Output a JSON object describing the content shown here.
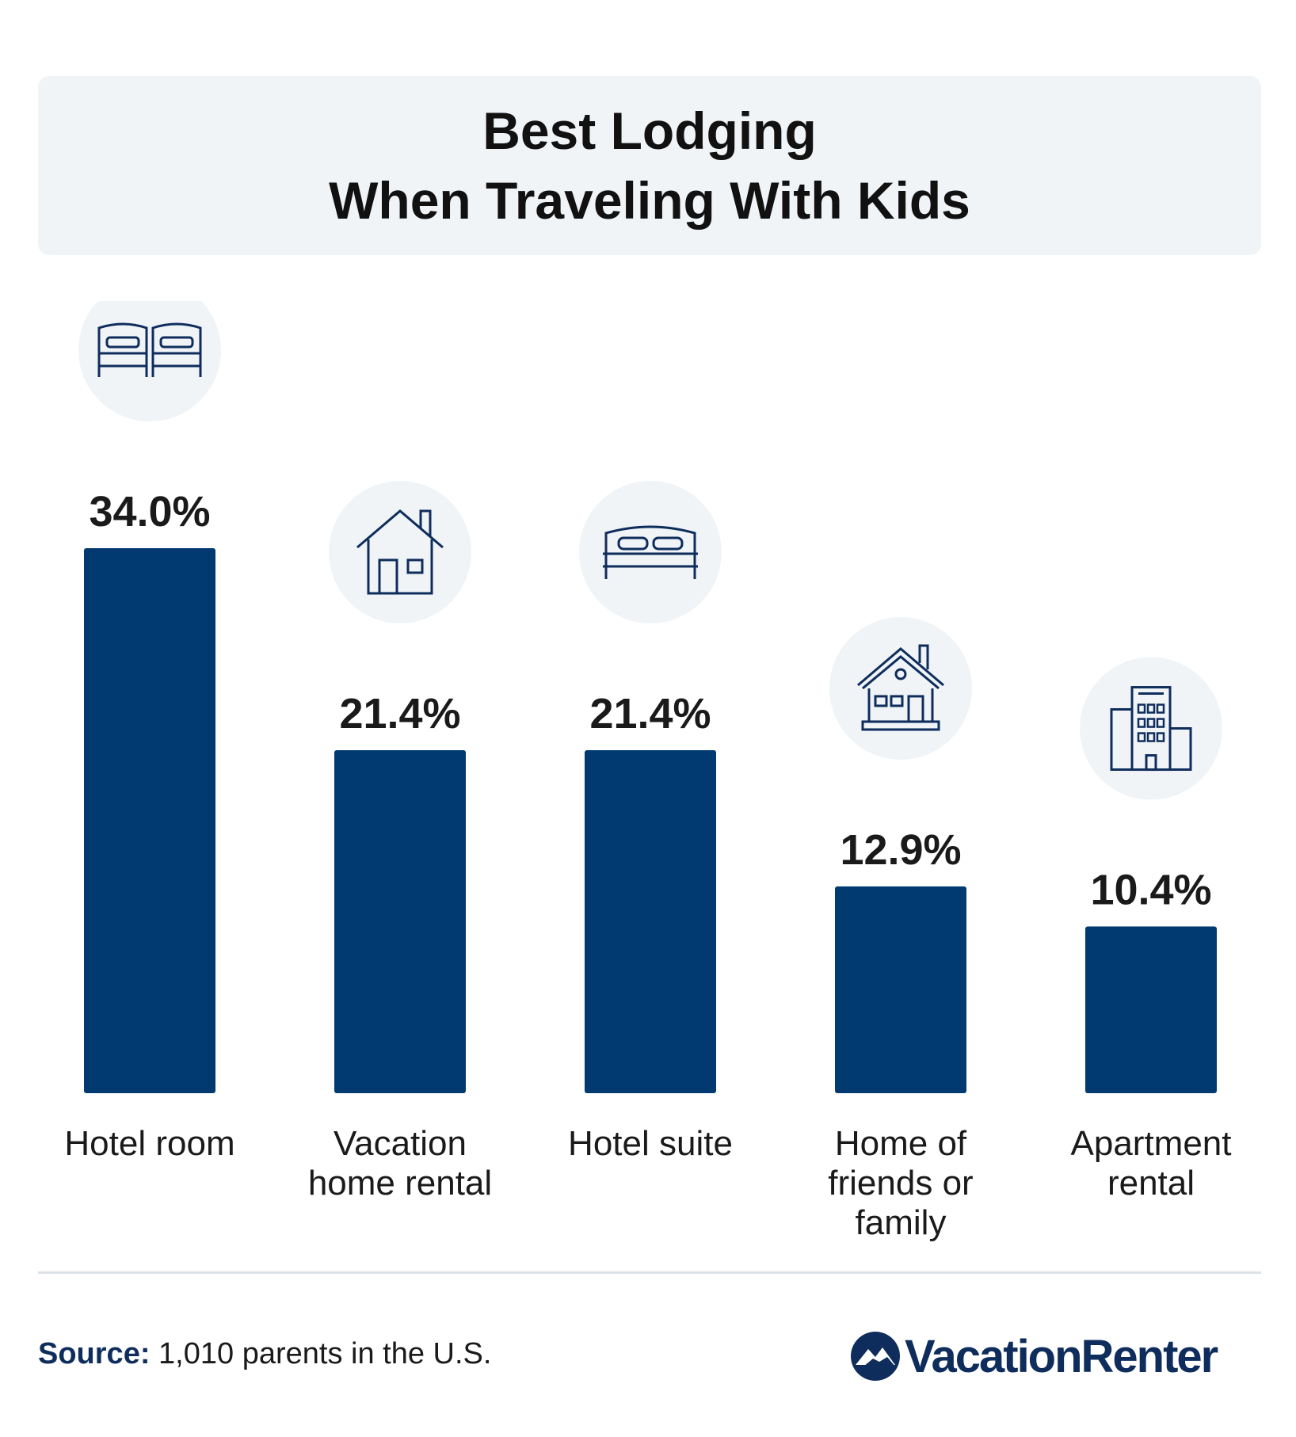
{
  "header": {
    "title_line1": "Best Lodging",
    "title_line2": "When Traveling With Kids"
  },
  "chart_data": {
    "type": "bar",
    "categories": [
      [
        "Hotel room"
      ],
      [
        "Vacation",
        "home rental"
      ],
      [
        "Hotel suite"
      ],
      [
        "Home of",
        "friends or",
        "family"
      ],
      [
        "Apartment",
        "rental"
      ]
    ],
    "values": [
      34.0,
      21.4,
      21.4,
      12.9,
      10.4
    ],
    "value_labels": [
      "34.0%",
      "21.4%",
      "21.4%",
      "12.9%",
      "10.4%"
    ],
    "icons": [
      "twin-beds-icon",
      "house-icon",
      "double-bed-icon",
      "family-home-icon",
      "apartment-building-icon"
    ],
    "bar_color": "#003a70",
    "icon_circle_color": "#f0f4f7",
    "icon_stroke_color": "#0f2d5c",
    "ylim": [
      0,
      34.0
    ],
    "grid": false
  },
  "footer": {
    "source_label": "Source:",
    "source_text": " 1,010 parents in the U.S.",
    "brand": "VacationRenter",
    "brand_logo_icon": "mountain-circle-logo-icon"
  }
}
